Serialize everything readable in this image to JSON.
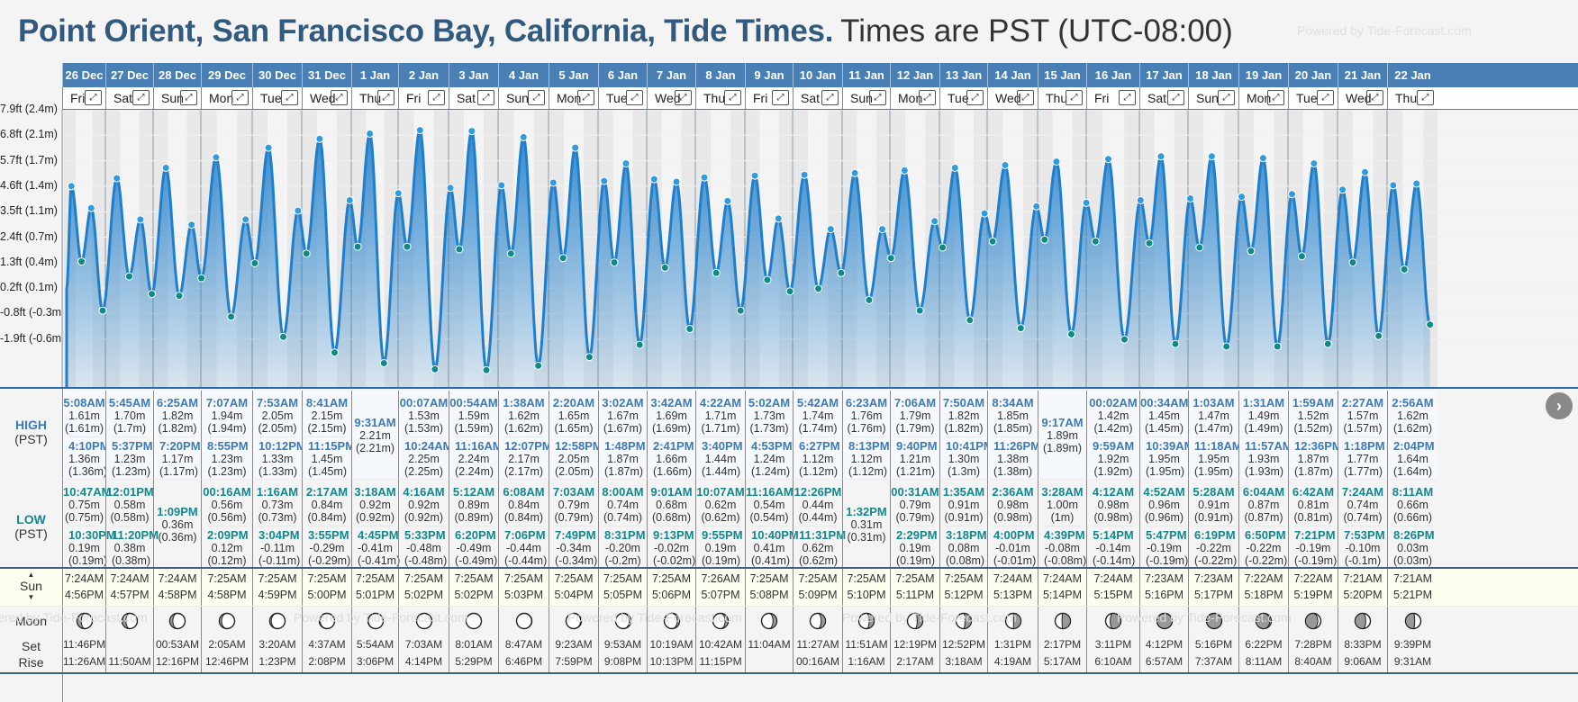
{
  "header": {
    "location": "Point Orient, San Francisco Bay, California, Tide Times.",
    "timezone": "Times are PST (UTC-08:00)",
    "powered_by": "Powered by Tide-Forecast.com"
  },
  "labels": {
    "high": "HIGH",
    "low": "LOW",
    "pst": "(PST)",
    "sun": "Sun",
    "moon": "Moon",
    "set": "Set",
    "rise": "Rise",
    "expand_glyph": "⤢",
    "next_glyph": "›"
  },
  "y_axis": [
    "7.9ft (2.4m)",
    "6.8ft (2.1m)",
    "5.7ft (1.7m)",
    "4.6ft (1.4m)",
    "3.5ft (1.1m)",
    "2.4ft (0.7m)",
    "1.3ft (0.4m)",
    "0.2ft (0.1m)",
    "-0.8ft (-0.3m)",
    "-1.9ft (-0.6m)"
  ],
  "colors": {
    "header_bar": "#4a7fb5",
    "title": "#325a7e",
    "high_time": "#3d7ab8",
    "low_time": "#13878f",
    "curve": "#1f7fcc",
    "sun_row": "#fdfdf0"
  },
  "days": [
    {
      "date": "26 Dec",
      "dow": "Fri",
      "high": [
        [
          "5:08AM",
          "1.61m",
          "(1.61m)"
        ],
        [
          "4:10PM",
          "1.36m",
          "(1.36m)"
        ]
      ],
      "low": [
        [
          "10:47AM",
          "0.75m",
          "(0.75m)"
        ],
        [
          "10:30PM",
          "0.19m",
          "(0.19m)"
        ]
      ],
      "sun": [
        "7:24AM",
        "4:56PM"
      ],
      "moon_phase": 0.28,
      "moon": [
        "11:46PM",
        "11:26AM"
      ]
    },
    {
      "date": "27 Dec",
      "dow": "Sat",
      "high": [
        [
          "5:45AM",
          "1.70m",
          "(1.7m)"
        ],
        [
          "5:37PM",
          "1.23m",
          "(1.23m)"
        ]
      ],
      "low": [
        [
          "12:01PM",
          "0.58m",
          "(0.58m)"
        ],
        [
          "11:20PM",
          "0.38m",
          "(0.38m)"
        ]
      ],
      "sun": [
        "7:24AM",
        "4:57PM"
      ],
      "moon_phase": 0.25,
      "moon": [
        "",
        "11:50AM"
      ]
    },
    {
      "date": "28 Dec",
      "dow": "Sun",
      "high": [
        [
          "6:25AM",
          "1.82m",
          "(1.82m)"
        ],
        [
          "7:20PM",
          "1.17m",
          "(1.17m)"
        ]
      ],
      "low": [
        [
          "1:09PM",
          "0.36m",
          "(0.36m)"
        ]
      ],
      "sun": [
        "7:24AM",
        "4:58PM"
      ],
      "moon_phase": 0.2,
      "moon": [
        "00:53AM",
        "12:16PM"
      ]
    },
    {
      "date": "29 Dec",
      "dow": "Mon",
      "high": [
        [
          "7:07AM",
          "1.94m",
          "(1.94m)"
        ],
        [
          "8:55PM",
          "1.23m",
          "(1.23m)"
        ]
      ],
      "low": [
        [
          "00:16AM",
          "0.56m",
          "(0.56m)"
        ],
        [
          "2:09PM",
          "0.12m",
          "(0.12m)"
        ]
      ],
      "sun": [
        "7:25AM",
        "4:58PM"
      ],
      "moon_phase": 0.15,
      "moon": [
        "2:05AM",
        "12:46PM"
      ]
    },
    {
      "date": "30 Dec",
      "dow": "Tue",
      "high": [
        [
          "7:53AM",
          "2.05m",
          "(2.05m)"
        ],
        [
          "10:12PM",
          "1.33m",
          "(1.33m)"
        ]
      ],
      "low": [
        [
          "1:16AM",
          "0.73m",
          "(0.73m)"
        ],
        [
          "3:04PM",
          "-0.11m",
          "(-0.11m)"
        ]
      ],
      "sun": [
        "7:25AM",
        "4:59PM"
      ],
      "moon_phase": 0.1,
      "moon": [
        "3:20AM",
        "1:23PM"
      ]
    },
    {
      "date": "31 Dec",
      "dow": "Wed",
      "high": [
        [
          "8:41AM",
          "2.15m",
          "(2.15m)"
        ],
        [
          "11:15PM",
          "1.45m",
          "(1.45m)"
        ]
      ],
      "low": [
        [
          "2:17AM",
          "0.84m",
          "(0.84m)"
        ],
        [
          "3:55PM",
          "-0.29m",
          "(-0.29m)"
        ]
      ],
      "sun": [
        "7:25AM",
        "5:00PM"
      ],
      "moon_phase": 0.06,
      "moon": [
        "4:37AM",
        "2:08PM"
      ]
    },
    {
      "date": "1 Jan",
      "dow": "Thu",
      "high": [
        [
          "9:31AM",
          "2.21m",
          "(2.21m)"
        ]
      ],
      "low": [
        [
          "3:18AM",
          "0.92m",
          "(0.92m)"
        ],
        [
          "4:45PM",
          "-0.41m",
          "(-0.41m)"
        ]
      ],
      "sun": [
        "7:25AM",
        "5:01PM"
      ],
      "moon_phase": 0.03,
      "moon": [
        "5:54AM",
        "3:06PM"
      ]
    },
    {
      "date": "2 Jan",
      "dow": "Fri",
      "high": [
        [
          "00:07AM",
          "1.53m",
          "(1.53m)"
        ],
        [
          "10:24AM",
          "2.25m",
          "(2.25m)"
        ]
      ],
      "low": [
        [
          "4:16AM",
          "0.92m",
          "(0.92m)"
        ],
        [
          "5:33PM",
          "-0.48m",
          "(-0.48m)"
        ]
      ],
      "sun": [
        "7:25AM",
        "5:02PM"
      ],
      "moon_phase": 0.0,
      "moon": [
        "7:03AM",
        "4:14PM"
      ]
    },
    {
      "date": "3 Jan",
      "dow": "Sat",
      "high": [
        [
          "00:54AM",
          "1.59m",
          "(1.59m)"
        ],
        [
          "11:16AM",
          "2.24m",
          "(2.24m)"
        ]
      ],
      "low": [
        [
          "5:12AM",
          "0.89m",
          "(0.89m)"
        ],
        [
          "6:20PM",
          "-0.49m",
          "(-0.49m)"
        ]
      ],
      "sun": [
        "7:25AM",
        "5:02PM"
      ],
      "moon_phase": 0.0,
      "moon": [
        "8:01AM",
        "5:29PM"
      ]
    },
    {
      "date": "4 Jan",
      "dow": "Sun",
      "high": [
        [
          "1:38AM",
          "1.62m",
          "(1.62m)"
        ],
        [
          "12:07PM",
          "2.17m",
          "(2.17m)"
        ]
      ],
      "low": [
        [
          "6:08AM",
          "0.84m",
          "(0.84m)"
        ],
        [
          "7:06PM",
          "-0.44m",
          "(-0.44m)"
        ]
      ],
      "sun": [
        "7:25AM",
        "5:03PM"
      ],
      "moon_phase": -0.02,
      "moon": [
        "8:47AM",
        "6:46PM"
      ]
    },
    {
      "date": "5 Jan",
      "dow": "Mon",
      "high": [
        [
          "2:20AM",
          "1.65m",
          "(1.65m)"
        ],
        [
          "12:58PM",
          "2.05m",
          "(2.05m)"
        ]
      ],
      "low": [
        [
          "7:03AM",
          "0.79m",
          "(0.79m)"
        ],
        [
          "7:49PM",
          "-0.34m",
          "(-0.34m)"
        ]
      ],
      "sun": [
        "7:25AM",
        "5:04PM"
      ],
      "moon_phase": -0.05,
      "moon": [
        "9:23AM",
        "7:59PM"
      ]
    },
    {
      "date": "6 Jan",
      "dow": "Tue",
      "high": [
        [
          "3:02AM",
          "1.67m",
          "(1.67m)"
        ],
        [
          "1:48PM",
          "1.87m",
          "(1.87m)"
        ]
      ],
      "low": [
        [
          "8:00AM",
          "0.74m",
          "(0.74m)"
        ],
        [
          "8:31PM",
          "-0.20m",
          "(-0.2m)"
        ]
      ],
      "sun": [
        "7:25AM",
        "5:05PM"
      ],
      "moon_phase": -0.1,
      "moon": [
        "9:53AM",
        "9:08PM"
      ]
    },
    {
      "date": "7 Jan",
      "dow": "Wed",
      "high": [
        [
          "3:42AM",
          "1.69m",
          "(1.69m)"
        ],
        [
          "2:41PM",
          "1.66m",
          "(1.66m)"
        ]
      ],
      "low": [
        [
          "9:01AM",
          "0.68m",
          "(0.68m)"
        ],
        [
          "9:13PM",
          "-0.02m",
          "(-0.02m)"
        ]
      ],
      "sun": [
        "7:25AM",
        "5:06PM"
      ],
      "moon_phase": -0.15,
      "moon": [
        "10:19AM",
        "10:13PM"
      ]
    },
    {
      "date": "8 Jan",
      "dow": "Thu",
      "high": [
        [
          "4:22AM",
          "1.71m",
          "(1.71m)"
        ],
        [
          "3:40PM",
          "1.44m",
          "(1.44m)"
        ]
      ],
      "low": [
        [
          "10:07AM",
          "0.62m",
          "(0.62m)"
        ],
        [
          "9:55PM",
          "0.19m",
          "(0.19m)"
        ]
      ],
      "sun": [
        "7:26AM",
        "5:07PM"
      ],
      "moon_phase": -0.2,
      "moon": [
        "10:42AM",
        "11:15PM"
      ]
    },
    {
      "date": "9 Jan",
      "dow": "Fri",
      "high": [
        [
          "5:02AM",
          "1.73m",
          "(1.73m)"
        ],
        [
          "4:53PM",
          "1.24m",
          "(1.24m)"
        ]
      ],
      "low": [
        [
          "11:16AM",
          "0.54m",
          "(0.54m)"
        ],
        [
          "10:40PM",
          "0.41m",
          "(0.41m)"
        ]
      ],
      "sun": [
        "7:25AM",
        "5:08PM"
      ],
      "moon_phase": -0.25,
      "moon": [
        "11:04AM",
        ""
      ]
    },
    {
      "date": "10 Jan",
      "dow": "Sat",
      "high": [
        [
          "5:42AM",
          "1.74m",
          "(1.74m)"
        ],
        [
          "6:27PM",
          "1.12m",
          "(1.12m)"
        ]
      ],
      "low": [
        [
          "12:26PM",
          "0.44m",
          "(0.44m)"
        ],
        [
          "11:31PM",
          "0.62m",
          "(0.62m)"
        ]
      ],
      "sun": [
        "7:25AM",
        "5:09PM"
      ],
      "moon_phase": -0.28,
      "moon": [
        "11:27AM",
        "00:16AM"
      ]
    },
    {
      "date": "11 Jan",
      "dow": "Sun",
      "high": [
        [
          "6:23AM",
          "1.76m",
          "(1.76m)"
        ],
        [
          "8:13PM",
          "1.12m",
          "(1.12m)"
        ]
      ],
      "low": [
        [
          "1:32PM",
          "0.31m",
          "(0.31m)"
        ]
      ],
      "sun": [
        "7:25AM",
        "5:10PM"
      ],
      "moon_phase": -0.32,
      "moon": [
        "11:51AM",
        "1:16AM"
      ]
    },
    {
      "date": "12 Jan",
      "dow": "Mon",
      "high": [
        [
          "7:06AM",
          "1.79m",
          "(1.79m)"
        ],
        [
          "9:40PM",
          "1.21m",
          "(1.21m)"
        ]
      ],
      "low": [
        [
          "00:31AM",
          "0.79m",
          "(0.79m)"
        ],
        [
          "2:29PM",
          "0.19m",
          "(0.19m)"
        ]
      ],
      "sun": [
        "7:25AM",
        "5:11PM"
      ],
      "moon_phase": -0.36,
      "moon": [
        "12:19PM",
        "2:17AM"
      ]
    },
    {
      "date": "13 Jan",
      "dow": "Tue",
      "high": [
        [
          "7:50AM",
          "1.82m",
          "(1.82m)"
        ],
        [
          "10:41PM",
          "1.30m",
          "(1.3m)"
        ]
      ],
      "low": [
        [
          "1:35AM",
          "0.91m",
          "(0.91m)"
        ],
        [
          "3:18PM",
          "0.08m",
          "(0.08m)"
        ]
      ],
      "sun": [
        "7:25AM",
        "5:12PM"
      ],
      "moon_phase": -0.42,
      "moon": [
        "12:52PM",
        "3:18AM"
      ]
    },
    {
      "date": "14 Jan",
      "dow": "Wed",
      "high": [
        [
          "8:34AM",
          "1.85m",
          "(1.85m)"
        ],
        [
          "11:26PM",
          "1.38m",
          "(1.38m)"
        ]
      ],
      "low": [
        [
          "2:36AM",
          "0.98m",
          "(0.98m)"
        ],
        [
          "4:00PM",
          "-0.01m",
          "(-0.01m)"
        ]
      ],
      "sun": [
        "7:24AM",
        "5:13PM"
      ],
      "moon_phase": -0.48,
      "moon": [
        "1:31PM",
        "4:19AM"
      ]
    },
    {
      "date": "15 Jan",
      "dow": "Thu",
      "high": [
        [
          "9:17AM",
          "1.89m",
          "(1.89m)"
        ]
      ],
      "low": [
        [
          "3:28AM",
          "1.00m",
          "(1m)"
        ],
        [
          "4:39PM",
          "-0.08m",
          "(-0.08m)"
        ]
      ],
      "sun": [
        "7:24AM",
        "5:14PM"
      ],
      "moon_phase": -0.55,
      "moon": [
        "2:17PM",
        "5:17AM"
      ]
    },
    {
      "date": "16 Jan",
      "dow": "Fri",
      "high": [
        [
          "00:02AM",
          "1.42m",
          "(1.42m)"
        ],
        [
          "9:59AM",
          "1.92m",
          "(1.92m)"
        ]
      ],
      "low": [
        [
          "4:12AM",
          "0.98m",
          "(0.98m)"
        ],
        [
          "5:14PM",
          "-0.14m",
          "(-0.14m)"
        ]
      ],
      "sun": [
        "7:24AM",
        "5:15PM"
      ],
      "moon_phase": -0.7,
      "moon": [
        "3:11PM",
        "6:10AM"
      ]
    },
    {
      "date": "17 Jan",
      "dow": "Sat",
      "high": [
        [
          "00:34AM",
          "1.45m",
          "(1.45m)"
        ],
        [
          "10:39AM",
          "1.95m",
          "(1.95m)"
        ]
      ],
      "low": [
        [
          "4:52AM",
          "0.96m",
          "(0.96m)"
        ],
        [
          "5:47PM",
          "-0.19m",
          "(-0.19m)"
        ]
      ],
      "sun": [
        "7:23AM",
        "5:16PM"
      ],
      "moon_phase": -1.0,
      "moon": [
        "4:12PM",
        "6:57AM"
      ]
    },
    {
      "date": "18 Jan",
      "dow": "Sun",
      "high": [
        [
          "1:03AM",
          "1.47m",
          "(1.47m)"
        ],
        [
          "11:18AM",
          "1.95m",
          "(1.95m)"
        ]
      ],
      "low": [
        [
          "5:28AM",
          "0.91m",
          "(0.91m)"
        ],
        [
          "6:19PM",
          "-0.22m",
          "(-0.22m)"
        ]
      ],
      "sun": [
        "7:23AM",
        "5:17PM"
      ],
      "moon_phase": -1.0,
      "moon": [
        "5:16PM",
        "7:37AM"
      ]
    },
    {
      "date": "19 Jan",
      "dow": "Mon",
      "high": [
        [
          "1:31AM",
          "1.49m",
          "(1.49m)"
        ],
        [
          "11:57AM",
          "1.93m",
          "(1.93m)"
        ]
      ],
      "low": [
        [
          "6:04AM",
          "0.87m",
          "(0.87m)"
        ],
        [
          "6:50PM",
          "-0.22m",
          "(-0.22m)"
        ]
      ],
      "sun": [
        "7:22AM",
        "5:18PM"
      ],
      "moon_phase": 0.9,
      "moon": [
        "6:22PM",
        "8:11AM"
      ]
    },
    {
      "date": "20 Jan",
      "dow": "Tue",
      "high": [
        [
          "1:59AM",
          "1.52m",
          "(1.52m)"
        ],
        [
          "12:36PM",
          "1.87m",
          "(1.87m)"
        ]
      ],
      "low": [
        [
          "6:42AM",
          "0.81m",
          "(0.81m)"
        ],
        [
          "7:21PM",
          "-0.19m",
          "(-0.19m)"
        ]
      ],
      "sun": [
        "7:22AM",
        "5:19PM"
      ],
      "moon_phase": 0.8,
      "moon": [
        "7:28PM",
        "8:40AM"
      ]
    },
    {
      "date": "21 Jan",
      "dow": "Wed",
      "high": [
        [
          "2:27AM",
          "1.57m",
          "(1.57m)"
        ],
        [
          "1:18PM",
          "1.77m",
          "(1.77m)"
        ]
      ],
      "low": [
        [
          "7:24AM",
          "0.74m",
          "(0.74m)"
        ],
        [
          "7:53PM",
          "-0.10m",
          "(-0.1m)"
        ]
      ],
      "sun": [
        "7:21AM",
        "5:20PM"
      ],
      "moon_phase": 0.7,
      "moon": [
        "8:33PM",
        "9:06AM"
      ]
    },
    {
      "date": "22 Jan",
      "dow": "Thu",
      "high": [
        [
          "2:56AM",
          "1.62m",
          "(1.62m)"
        ],
        [
          "2:04PM",
          "1.64m",
          "(1.64m)"
        ]
      ],
      "low": [
        [
          "8:11AM",
          "0.66m",
          "(0.66m)"
        ],
        [
          "8:26PM",
          "0.03m",
          "(0.03m)"
        ]
      ],
      "sun": [
        "7:21AM",
        "5:21PM"
      ],
      "moon_phase": 0.6,
      "moon": [
        "9:39PM",
        "9:31AM"
      ]
    }
  ]
}
